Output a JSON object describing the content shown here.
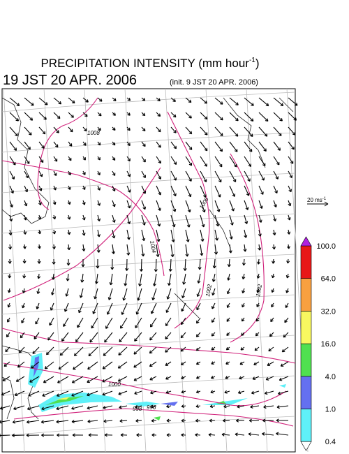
{
  "header": {
    "title": "PRECIPITATION INTENSITY (mm hour",
    "title_exponent": "-1",
    "title_close": ")",
    "valid_time": "19 JST 20 APR. 2006",
    "init_time": "(init. 9 JST 20 APR. 2006)"
  },
  "wind_scale": {
    "label": "20 ms",
    "exponent": "-1"
  },
  "colorbar": {
    "levels": [
      0.4,
      {
        "value": 1,
        "label": "1.0"
      },
      {
        "value": 4,
        "label": "4.0"
      },
      {
        "value": 16,
        "label": "16.0"
      },
      {
        "value": 32,
        "label": "32.0"
      },
      {
        "value": 64,
        "label": "64.0"
      },
      {
        "value": 100,
        "label": "100.0"
      }
    ],
    "colors": [
      "#5ff0f8",
      "#6470f0",
      "#50e050",
      "#f8f860",
      "#f8a040",
      "#e81818"
    ],
    "under_color": "#ffffff",
    "over_color": "#b020e0"
  },
  "contour_labels": [
    1008,
    1006,
    1004,
    1002,
    1002,
    1000,
    998,
    996
  ]
}
